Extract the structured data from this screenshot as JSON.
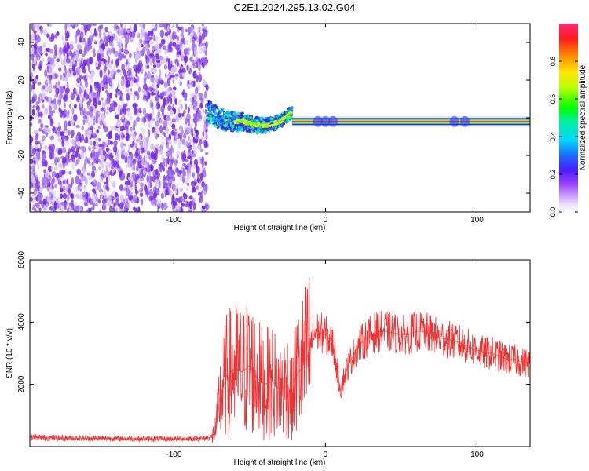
{
  "title": "C2E1.2024.295.13.02.G04",
  "colors": {
    "snr_line": "#f03232",
    "carrier_line": "#ff3a3a",
    "noise_purple": "#7a2ee6",
    "noise_light": "#d9c4f5"
  },
  "chart_data": [
    {
      "type": "heatmap",
      "title": "C2E1.2024.295.13.02.G04",
      "xlabel": "Height of straight line (km)",
      "ylabel": "Frequency (Hz)",
      "xlim": [
        -195,
        135
      ],
      "ylim": [
        -50,
        50
      ],
      "xticks": [
        -100,
        0,
        100
      ],
      "xtick_labels": [
        "-100",
        "0",
        "100"
      ],
      "yticks": [
        -40,
        -20,
        0,
        20,
        40
      ],
      "ytick_labels": [
        "-40",
        "-20",
        "0",
        "20",
        "40"
      ],
      "colorbar": {
        "label": "Normalized spectral amplitude",
        "range": [
          0,
          1
        ],
        "ticks": [
          0,
          0.2,
          0.4,
          0.6,
          0.8
        ],
        "tick_labels": [
          "0.0",
          "0.2",
          "0.4",
          "0.6",
          "0.8"
        ]
      },
      "regions": [
        {
          "name": "noise",
          "x": [
            -195,
            -78
          ],
          "description_value": "uniform low amplitude speckle"
        },
        {
          "name": "transition",
          "x": [
            -78,
            -22
          ],
          "center_freq_hz": [
            [
              -75,
              2
            ],
            [
              -65,
              -2
            ],
            [
              -55,
              -2
            ],
            [
              -45,
              -4
            ],
            [
              -38,
              -4
            ],
            [
              -30,
              -2
            ],
            [
              -22,
              3
            ]
          ]
        },
        {
          "name": "carrier",
          "x": [
            -22,
            135
          ],
          "center_freq_hz": -2,
          "amplitude": 1.0
        }
      ]
    },
    {
      "type": "line",
      "xlabel": "Height of straight line (km)",
      "ylabel": "SNR (10 * v/v)",
      "xlim": [
        -195,
        135
      ],
      "ylim": [
        0,
        6000
      ],
      "xticks": [
        -100,
        0,
        100
      ],
      "xtick_labels": [
        "-100",
        "0",
        "100"
      ],
      "yticks": [
        2000,
        4000,
        6000
      ],
      "ytick_labels": [
        "2000",
        "4000",
        "6000"
      ],
      "series": [
        {
          "x": [
            -195,
            -180,
            -160,
            -140,
            -120,
            -100,
            -90,
            -80,
            -75,
            -72,
            -70,
            -65,
            -60,
            -55,
            -50,
            -45,
            -40,
            -35,
            -30,
            -25,
            -22,
            -20,
            -15,
            -12,
            -10,
            -8,
            -5,
            0,
            5,
            10,
            12,
            15,
            20,
            25,
            30,
            35,
            40,
            45,
            50,
            55,
            60,
            65,
            70,
            75,
            80,
            85,
            90,
            95,
            100,
            105,
            110,
            115,
            120,
            125,
            130,
            135
          ],
          "y": [
            300,
            280,
            270,
            260,
            250,
            250,
            260,
            270,
            300,
            600,
            1500,
            2300,
            2500,
            2400,
            2600,
            2200,
            2000,
            2100,
            1800,
            2000,
            1500,
            2200,
            2600,
            2900,
            3200,
            3600,
            3700,
            3600,
            3300,
            1800,
            2200,
            2600,
            3100,
            3400,
            3600,
            3700,
            3700,
            3650,
            3600,
            3600,
            3700,
            3700,
            3600,
            3500,
            3450,
            3400,
            3300,
            3200,
            3100,
            3000,
            3000,
            2900,
            2800,
            2800,
            2700,
            2700
          ]
        }
      ]
    }
  ]
}
